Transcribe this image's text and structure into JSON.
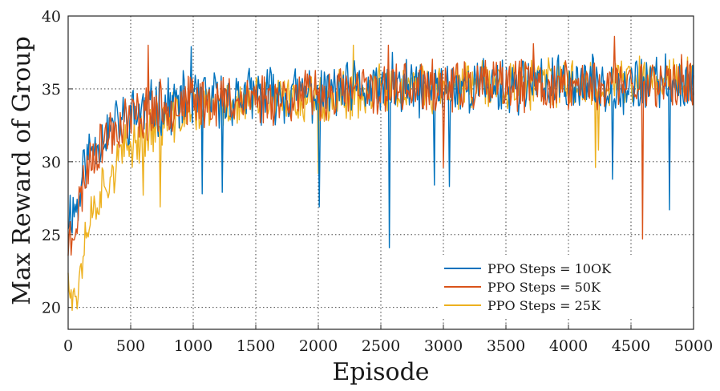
{
  "chart_data": {
    "type": "line",
    "xlabel": "Episode",
    "ylabel": "Max Reward of Group",
    "xlim": [
      0,
      5000
    ],
    "ylim": [
      18.5,
      40
    ],
    "xticks": [
      0,
      500,
      1000,
      1500,
      2000,
      2500,
      3000,
      3500,
      4000,
      4500,
      5000
    ],
    "yticks": [
      20,
      25,
      30,
      35,
      40
    ],
    "grid": true,
    "legend_position": "bottom-right",
    "series": [
      {
        "name": "PPO Steps = 10OK",
        "color": "#0072BD",
        "points": [
          [
            0,
            26.5
          ],
          [
            40,
            26.8
          ],
          [
            80,
            27.0
          ],
          [
            120,
            29.5
          ],
          [
            160,
            30.5
          ],
          [
            200,
            31.0
          ],
          [
            250,
            31.5
          ],
          [
            300,
            32.0
          ],
          [
            350,
            32.3
          ],
          [
            400,
            32.6
          ],
          [
            450,
            33.0
          ],
          [
            500,
            33.2
          ],
          [
            600,
            33.5
          ],
          [
            700,
            33.7
          ],
          [
            800,
            33.9
          ],
          [
            900,
            34.1
          ],
          [
            1000,
            34.2
          ],
          [
            1200,
            34.3
          ],
          [
            1500,
            34.5
          ],
          [
            1800,
            34.6
          ],
          [
            2000,
            34.7
          ],
          [
            2300,
            34.9
          ],
          [
            2500,
            35.0
          ],
          [
            2800,
            35.0
          ],
          [
            3000,
            35.1
          ],
          [
            3300,
            35.2
          ],
          [
            3600,
            35.2
          ],
          [
            4000,
            35.3
          ],
          [
            4400,
            35.3
          ],
          [
            4700,
            35.4
          ],
          [
            5000,
            35.4
          ]
        ],
        "noise": 1.7,
        "seed": 11,
        "spikes": [
          [
            985,
            37.9
          ],
          [
            1070,
            27.8
          ],
          [
            1230,
            27.9
          ],
          [
            1540,
            28.8
          ],
          [
            2005,
            26.9
          ],
          [
            2565,
            24.1
          ],
          [
            2590,
            37.5
          ],
          [
            2930,
            28.4
          ],
          [
            3045,
            28.3
          ],
          [
            3300,
            28.6
          ],
          [
            3640,
            36.9
          ],
          [
            4350,
            28.8
          ],
          [
            4620,
            27.0
          ],
          [
            4810,
            26.7
          ],
          [
            4860,
            37.3
          ]
        ]
      },
      {
        "name": "PPO Steps = 50K",
        "color": "#D95319",
        "points": [
          [
            0,
            24.5
          ],
          [
            40,
            25.5
          ],
          [
            80,
            26.5
          ],
          [
            120,
            28.5
          ],
          [
            160,
            29.8
          ],
          [
            200,
            30.6
          ],
          [
            250,
            31.2
          ],
          [
            300,
            31.7
          ],
          [
            350,
            32.1
          ],
          [
            400,
            32.4
          ],
          [
            450,
            32.8
          ],
          [
            500,
            33.0
          ],
          [
            600,
            33.3
          ],
          [
            700,
            33.6
          ],
          [
            800,
            33.8
          ],
          [
            900,
            34.0
          ],
          [
            1000,
            34.1
          ],
          [
            1200,
            34.2
          ],
          [
            1500,
            34.4
          ],
          [
            1800,
            34.5
          ],
          [
            2000,
            34.6
          ],
          [
            2300,
            34.8
          ],
          [
            2500,
            34.9
          ],
          [
            2800,
            35.0
          ],
          [
            3000,
            35.1
          ],
          [
            3300,
            35.1
          ],
          [
            3600,
            35.2
          ],
          [
            4000,
            35.2
          ],
          [
            4400,
            35.3
          ],
          [
            4700,
            35.4
          ],
          [
            5000,
            35.5
          ]
        ],
        "noise": 1.6,
        "seed": 23,
        "spikes": [
          [
            25,
            23.6
          ],
          [
            540,
            27.7
          ],
          [
            640,
            38.0
          ],
          [
            2560,
            38.0
          ],
          [
            3000,
            29.6
          ],
          [
            3720,
            38.1
          ],
          [
            4365,
            38.6
          ],
          [
            4590,
            24.7
          ],
          [
            4980,
            38.4
          ]
        ]
      },
      {
        "name": "PPO Steps = 25K",
        "color": "#EDB120",
        "points": [
          [
            0,
            23.0
          ],
          [
            30,
            21.5
          ],
          [
            60,
            20.5
          ],
          [
            90,
            22.8
          ],
          [
            120,
            24.5
          ],
          [
            160,
            25.8
          ],
          [
            200,
            26.8
          ],
          [
            250,
            27.8
          ],
          [
            300,
            28.6
          ],
          [
            350,
            29.3
          ],
          [
            400,
            30.0
          ],
          [
            450,
            30.7
          ],
          [
            500,
            31.2
          ],
          [
            600,
            31.9
          ],
          [
            700,
            32.4
          ],
          [
            800,
            32.8
          ],
          [
            900,
            33.2
          ],
          [
            1000,
            33.5
          ],
          [
            1200,
            33.8
          ],
          [
            1500,
            34.1
          ],
          [
            1800,
            34.3
          ],
          [
            2000,
            34.5
          ],
          [
            2300,
            34.7
          ],
          [
            2500,
            34.9
          ],
          [
            2800,
            35.0
          ],
          [
            3000,
            35.1
          ],
          [
            3300,
            35.2
          ],
          [
            3600,
            35.3
          ],
          [
            4000,
            35.4
          ],
          [
            4400,
            35.5
          ],
          [
            4700,
            35.6
          ],
          [
            5000,
            35.7
          ]
        ],
        "noise": 1.5,
        "seed": 37,
        "spikes": [
          [
            30,
            19.8
          ],
          [
            75,
            19.9
          ],
          [
            110,
            22.0
          ],
          [
            600,
            27.7
          ],
          [
            735,
            26.9
          ],
          [
            1140,
            27.6
          ],
          [
            2000,
            29.2
          ],
          [
            2280,
            38.0
          ],
          [
            4215,
            29.6
          ],
          [
            4240,
            30.8
          ]
        ]
      }
    ]
  }
}
